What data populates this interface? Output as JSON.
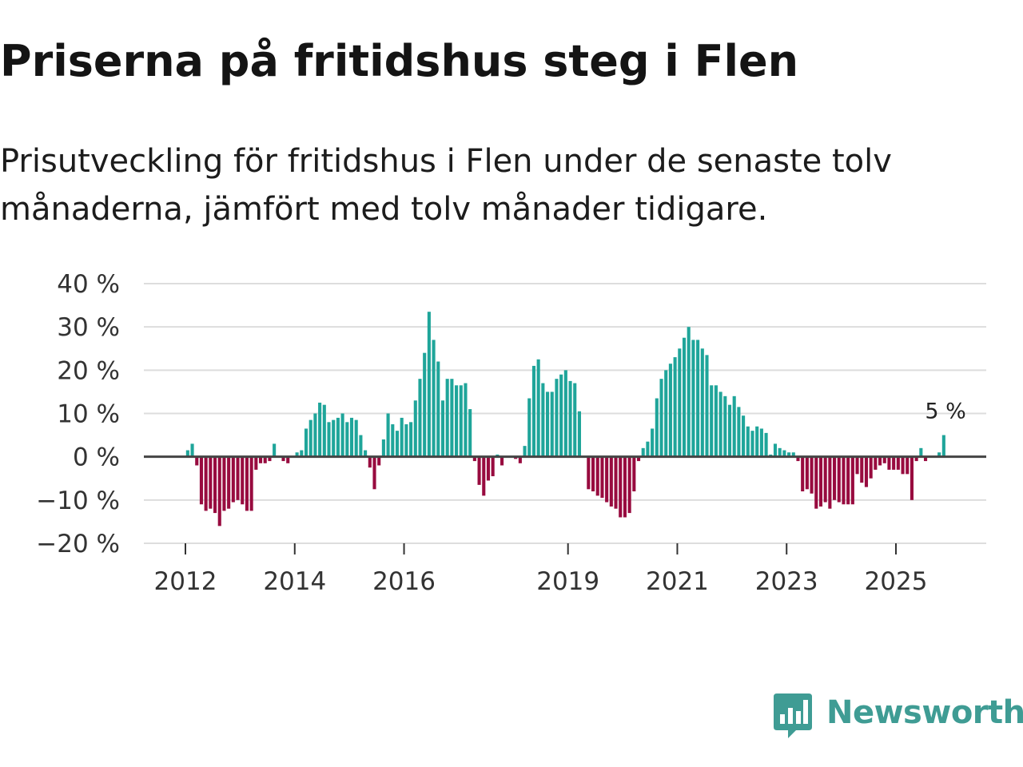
{
  "title": "Priserna på fritidshus steg i Flen",
  "subtitle": "Prisutveckling för fritidshus i Flen under de senaste tolv månaderna, jämfört med tolv månader tidigare.",
  "brand": {
    "name": "Newsworthy",
    "color": "#3f9c94",
    "icon": "newsworthy-chart-bubble-icon"
  },
  "colors": {
    "positive": "#1fa59a",
    "negative": "#980b3f",
    "grid": "#dddddd",
    "zero_line": "#444444"
  },
  "chart_data": {
    "type": "bar",
    "title": "Priserna på fritidshus steg i Flen",
    "ylabel": "",
    "xlabel": "",
    "ylim": [
      -20,
      40
    ],
    "y_ticks": [
      -20,
      -10,
      0,
      10,
      20,
      30,
      40
    ],
    "y_tick_labels": [
      "−20 %",
      "−10 %",
      "0 %",
      "10 %",
      "20 %",
      "30 %",
      "40 %"
    ],
    "x_ticks": [
      {
        "label": "2012",
        "year": 2012.0
      },
      {
        "label": "2014",
        "year": 2014.0
      },
      {
        "label": "2016",
        "year": 2016.0
      },
      {
        "label": "2019",
        "year": 2019.0
      },
      {
        "label": "2021",
        "year": 2021.0
      },
      {
        "label": "2023",
        "year": 2023.0
      },
      {
        "label": "2025",
        "year": 2025.0
      }
    ],
    "start": "2012-01",
    "interval": "month",
    "values": [
      1.5,
      3.0,
      -2.0,
      -11.0,
      -12.5,
      -12.0,
      -13.0,
      -16.0,
      -12.5,
      -12.0,
      -10.5,
      -10.0,
      -11.0,
      -12.5,
      -12.5,
      -3.0,
      -1.5,
      -1.5,
      -1.0,
      3.0,
      0.0,
      -1.0,
      -1.5,
      0.0,
      1.0,
      1.5,
      6.5,
      8.5,
      10.0,
      12.5,
      12.0,
      8.0,
      8.5,
      9.0,
      10.0,
      8.0,
      9.0,
      8.5,
      5.0,
      1.5,
      -2.5,
      -7.5,
      -2.0,
      4.0,
      10.0,
      7.5,
      6.0,
      9.0,
      7.5,
      8.0,
      13.0,
      18.0,
      24.0,
      33.5,
      27.0,
      22.0,
      13.0,
      18.0,
      18.0,
      16.5,
      16.5,
      17.0,
      11.0,
      -1.0,
      -6.5,
      -9.0,
      -5.5,
      -4.5,
      0.5,
      -2.0,
      0.0,
      0.0,
      -0.5,
      -1.5,
      2.5,
      13.5,
      21.0,
      22.5,
      17.0,
      15.0,
      15.0,
      18.0,
      19.0,
      20.0,
      17.5,
      17.0,
      10.5,
      0.0,
      -7.5,
      -8.0,
      -9.0,
      -9.5,
      -10.5,
      -11.5,
      -12.0,
      -14.0,
      -14.0,
      -13.0,
      -8.0,
      -1.0,
      2.0,
      3.5,
      6.5,
      13.5,
      18.0,
      20.0,
      21.5,
      23.0,
      25.0,
      27.5,
      30.0,
      27.0,
      27.0,
      25.0,
      23.5,
      16.5,
      16.5,
      15.0,
      14.0,
      12.0,
      14.0,
      11.5,
      9.5,
      7.0,
      6.0,
      7.0,
      6.5,
      5.5,
      0.5,
      3.0,
      2.0,
      1.5,
      1.0,
      1.0,
      -1.0,
      -8.0,
      -7.5,
      -8.5,
      -12.0,
      -11.5,
      -10.5,
      -12.0,
      -10.0,
      -10.5,
      -11.0,
      -11.0,
      -11.0,
      -4.0,
      -6.0,
      -7.0,
      -5.0,
      -3.0,
      -2.0,
      -1.5,
      -3.0,
      -3.0,
      -3.0,
      -4.0,
      -4.0,
      -10.0,
      -1.0,
      2.0,
      -1.0,
      0.0,
      0.0,
      1.0,
      5.0
    ],
    "annotations": [
      {
        "text": "5 %",
        "target": "last"
      }
    ]
  }
}
